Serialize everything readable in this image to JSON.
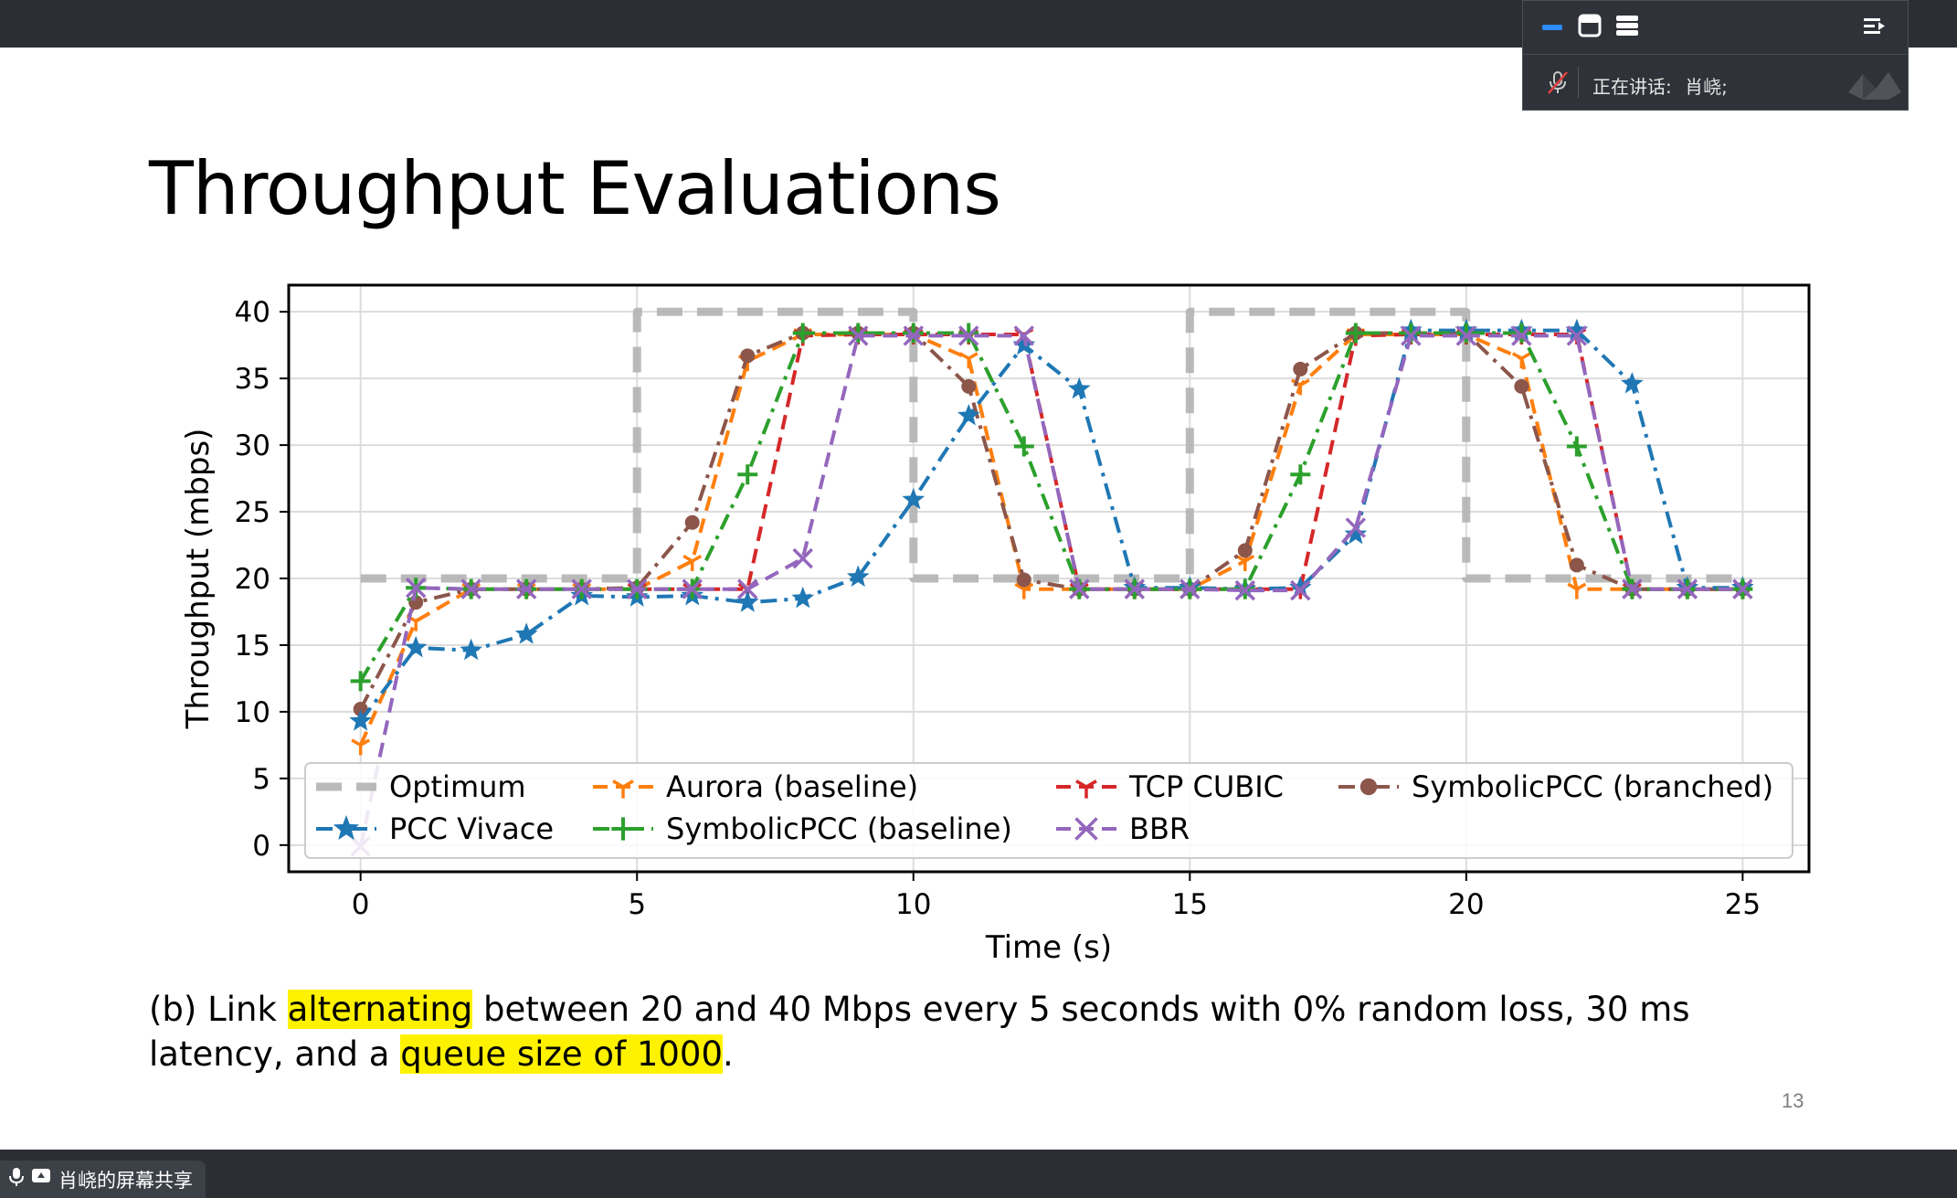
{
  "slide": {
    "title": "Throughput Evaluations",
    "caption_parts": [
      "(b) Link ",
      "alternating",
      " between 20 and 40 Mbps every 5 seconds with 0% random loss, 30 ms latency, and a ",
      "queue size of 1000",
      "."
    ],
    "page_number": "13"
  },
  "meeting": {
    "speaking_label": "正在讲话:",
    "speaker_name": "肖峣;",
    "share_label": "肖峣的屏幕共享",
    "icons": [
      "minimize-icon",
      "window-icon",
      "layout-icon",
      "collapse-panel-icon",
      "muted-mic-icon",
      "mic-icon",
      "screen-share-icon"
    ]
  },
  "chart_data": {
    "type": "line",
    "xlabel": "Time (s)",
    "ylabel": "Throughput (mbps)",
    "xlim": [
      -1.3,
      26.2
    ],
    "ylim": [
      -2,
      42
    ],
    "xticks": [
      0,
      5,
      10,
      15,
      20,
      25
    ],
    "yticks": [
      0,
      5,
      10,
      15,
      20,
      25,
      30,
      35,
      40
    ],
    "grid": true,
    "legend_position": "lower center, inside",
    "series": [
      {
        "name": "Optimum",
        "color": "#b3b3b3",
        "style": "dashed-thick",
        "marker": "none",
        "x": [
          0,
          5,
          5,
          10,
          10,
          15,
          15,
          20,
          20,
          25
        ],
        "y": [
          20,
          20,
          40,
          40,
          20,
          20,
          40,
          40,
          20,
          20
        ]
      },
      {
        "name": "Aurora (baseline)",
        "color": "#ff7f0e",
        "style": "dashed",
        "marker": "tri",
        "x": [
          0,
          1,
          2,
          3,
          4,
          5,
          6,
          7,
          8,
          9,
          10,
          11,
          12,
          13,
          14,
          15,
          16,
          17,
          18,
          19,
          20,
          21,
          22,
          23,
          24,
          25
        ],
        "y": [
          7.5,
          16.8,
          19.2,
          19.2,
          19.2,
          19.2,
          21.3,
          36.3,
          38.3,
          38.3,
          38.3,
          36.5,
          19.2,
          19.2,
          19.2,
          19.2,
          21.3,
          34.5,
          38.3,
          38.3,
          38.3,
          36.5,
          19.2,
          19.2,
          19.2,
          19.2
        ]
      },
      {
        "name": "TCP CUBIC",
        "color": "#d62728",
        "style": "dashed",
        "marker": "tri",
        "x": [
          5,
          6,
          7,
          8,
          9,
          10,
          11,
          12,
          13,
          14,
          15,
          16,
          17,
          18,
          19,
          20,
          21,
          22,
          23,
          24,
          25
        ],
        "y": [
          19.2,
          19.2,
          19.2,
          38.2,
          38.3,
          38.3,
          38.3,
          38.3,
          19.2,
          19.2,
          19.2,
          19.2,
          19.2,
          38.2,
          38.3,
          38.3,
          38.3,
          38.3,
          19.2,
          19.2,
          19.2
        ]
      },
      {
        "name": "SymbolicPCC (branched)",
        "color": "#8c564b",
        "style": "dashdot",
        "marker": "circle",
        "x": [
          0,
          1,
          2,
          3,
          4,
          5,
          6,
          7,
          8,
          9,
          10,
          11,
          12,
          13,
          14,
          15,
          16,
          17,
          18,
          19,
          20,
          21,
          22,
          23,
          24,
          25
        ],
        "y": [
          10.2,
          18.2,
          19.2,
          19.2,
          19.2,
          19.3,
          24.2,
          36.7,
          38.4,
          38.4,
          38.4,
          34.4,
          19.9,
          19.2,
          19.2,
          19.2,
          22.1,
          35.7,
          38.4,
          38.4,
          38.4,
          34.4,
          21,
          19.2,
          19.2,
          19.2
        ]
      },
      {
        "name": "PCC Vivace",
        "color": "#1f77b4",
        "style": "dashdot",
        "marker": "star",
        "x": [
          0,
          1,
          2,
          3,
          4,
          5,
          6,
          7,
          8,
          9,
          10,
          11,
          12,
          13,
          14,
          15,
          16,
          17,
          18,
          19,
          20,
          21,
          22,
          23,
          24,
          25
        ],
        "y": [
          9.3,
          14.8,
          14.6,
          15.8,
          18.7,
          18.6,
          18.7,
          18.2,
          18.5,
          20.1,
          25.9,
          32.2,
          37.5,
          34.2,
          19.3,
          19.3,
          19.2,
          19.3,
          23.3,
          38.6,
          38.6,
          38.6,
          38.6,
          34.6,
          19.3,
          19.3
        ]
      },
      {
        "name": "SymbolicPCC (baseline)",
        "color": "#2ca02c",
        "style": "dashdot",
        "marker": "plus",
        "x": [
          0,
          1,
          2,
          3,
          4,
          5,
          6,
          7,
          8,
          9,
          10,
          11,
          12,
          13,
          14,
          15,
          16,
          17,
          18,
          19,
          20,
          21,
          22,
          23,
          24,
          25
        ],
        "y": [
          12.3,
          19.3,
          19.2,
          19.2,
          19.2,
          19.2,
          19.2,
          27.8,
          38.4,
          38.4,
          38.4,
          38.4,
          29.9,
          19.2,
          19.2,
          19.2,
          19.2,
          27.8,
          38.4,
          38.4,
          38.4,
          38.4,
          29.9,
          19.2,
          19.2,
          19.2
        ]
      },
      {
        "name": "BBR",
        "color": "#9467bd",
        "style": "dashed",
        "marker": "x",
        "x": [
          0,
          1,
          2,
          3,
          4,
          5,
          6,
          7,
          8,
          9,
          10,
          11,
          12,
          13,
          14,
          15,
          16,
          17,
          18,
          19,
          20,
          21,
          22,
          23,
          24,
          25
        ],
        "y": [
          -0.1,
          19.3,
          19.2,
          19.2,
          19.2,
          19.2,
          19.2,
          19.2,
          21.5,
          38.2,
          38.2,
          38.2,
          38.2,
          19.2,
          19.2,
          19.2,
          19.1,
          19.1,
          23.8,
          38.2,
          38.2,
          38.2,
          38.2,
          19.2,
          19.2,
          19.2
        ]
      }
    ],
    "legend_order": [
      [
        "Optimum",
        "Aurora (baseline)",
        "TCP CUBIC",
        "SymbolicPCC (branched)"
      ],
      [
        "PCC Vivace",
        "SymbolicPCC (baseline)",
        "BBR"
      ]
    ]
  }
}
